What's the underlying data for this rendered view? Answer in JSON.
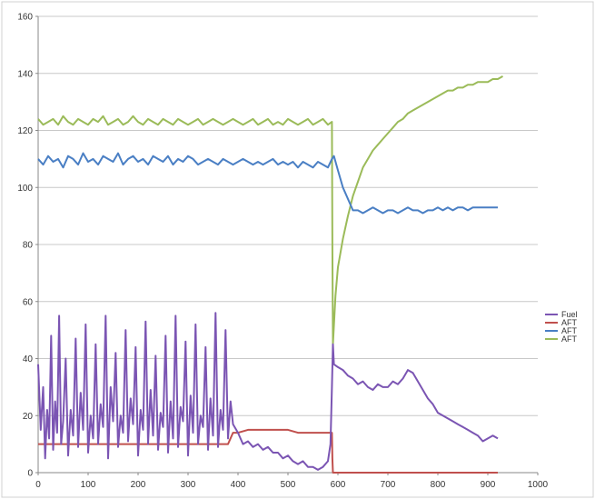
{
  "chart_data": {
    "type": "line",
    "xlim": [
      0,
      1000
    ],
    "ylim": [
      0,
      160
    ],
    "x_ticks": [
      0,
      100,
      200,
      300,
      400,
      500,
      600,
      700,
      800,
      900,
      1000
    ],
    "y_ticks": [
      0,
      20,
      40,
      60,
      80,
      100,
      120,
      140,
      160
    ],
    "grid": "horizontal",
    "legend_position": "right",
    "colors": {
      "fuel": "#7b55b3",
      "aft_red": "#c0504d",
      "aft_blue": "#4a7fc4",
      "aft_green": "#9bbb59",
      "grid": "#c8c8c8",
      "axis": "#888888"
    },
    "series": [
      {
        "name": "Fuel",
        "color": "#7b55b3",
        "x": [
          0,
          5,
          10,
          14,
          18,
          22,
          26,
          30,
          34,
          38,
          42,
          46,
          50,
          55,
          60,
          65,
          70,
          75,
          80,
          85,
          90,
          95,
          100,
          105,
          110,
          115,
          120,
          125,
          130,
          135,
          140,
          145,
          150,
          155,
          160,
          165,
          170,
          175,
          180,
          185,
          190,
          195,
          200,
          205,
          210,
          215,
          220,
          225,
          230,
          235,
          240,
          245,
          250,
          255,
          260,
          265,
          270,
          275,
          280,
          285,
          290,
          295,
          300,
          305,
          310,
          315,
          320,
          325,
          330,
          335,
          340,
          345,
          350,
          355,
          360,
          365,
          370,
          375,
          380,
          385,
          390,
          400,
          410,
          420,
          430,
          440,
          450,
          460,
          470,
          480,
          490,
          500,
          510,
          520,
          530,
          540,
          550,
          560,
          570,
          580,
          585,
          588,
          590,
          592,
          600,
          610,
          620,
          630,
          640,
          650,
          660,
          670,
          680,
          690,
          700,
          710,
          720,
          730,
          740,
          750,
          760,
          770,
          780,
          790,
          800,
          810,
          820,
          830,
          840,
          850,
          860,
          870,
          880,
          890,
          900,
          910,
          920
        ],
        "y": [
          38,
          15,
          30,
          5,
          22,
          12,
          48,
          8,
          25,
          14,
          55,
          10,
          18,
          40,
          6,
          22,
          13,
          47,
          9,
          28,
          15,
          52,
          7,
          20,
          12,
          45,
          10,
          24,
          16,
          55,
          5,
          30,
          18,
          42,
          9,
          20,
          14,
          50,
          11,
          26,
          17,
          44,
          6,
          22,
          15,
          53,
          10,
          29,
          13,
          41,
          8,
          21,
          16,
          48,
          7,
          25,
          12,
          55,
          9,
          23,
          18,
          46,
          6,
          27,
          14,
          52,
          10,
          20,
          16,
          44,
          8,
          26,
          13,
          56,
          9,
          22,
          15,
          50,
          12,
          25,
          17,
          14,
          10,
          11,
          9,
          10,
          8,
          9,
          7,
          7,
          5,
          6,
          4,
          3,
          4,
          2,
          2,
          1,
          2,
          4,
          10,
          30,
          45,
          38,
          37,
          36,
          34,
          33,
          31,
          32,
          30,
          29,
          31,
          30,
          30,
          32,
          31,
          33,
          36,
          35,
          32,
          29,
          26,
          24,
          21,
          20,
          19,
          18,
          17,
          16,
          15,
          14,
          13,
          11,
          12,
          13,
          12
        ]
      },
      {
        "name": "AFT",
        "color": "#c0504d",
        "x": [
          0,
          50,
          100,
          150,
          200,
          250,
          300,
          350,
          380,
          390,
          400,
          420,
          440,
          460,
          480,
          500,
          520,
          540,
          560,
          580,
          586,
          588,
          589,
          590,
          600,
          650,
          700,
          750,
          800,
          850,
          900,
          920
        ],
        "y": [
          10,
          10,
          10,
          10,
          10,
          10,
          10,
          10,
          10,
          14,
          14,
          15,
          15,
          15,
          15,
          15,
          14,
          14,
          14,
          14,
          14,
          14,
          5,
          0,
          0,
          0,
          0,
          0,
          0,
          0,
          0,
          0
        ]
      },
      {
        "name": "AFT",
        "color": "#4a7fc4",
        "x": [
          0,
          10,
          20,
          30,
          40,
          50,
          60,
          70,
          80,
          90,
          100,
          110,
          120,
          130,
          140,
          150,
          160,
          170,
          180,
          190,
          200,
          210,
          220,
          230,
          240,
          250,
          260,
          270,
          280,
          290,
          300,
          310,
          320,
          330,
          340,
          350,
          360,
          370,
          380,
          390,
          400,
          410,
          420,
          430,
          440,
          450,
          460,
          470,
          480,
          490,
          500,
          510,
          520,
          530,
          540,
          550,
          560,
          570,
          580,
          588,
          592,
          600,
          610,
          620,
          630,
          640,
          650,
          660,
          670,
          680,
          690,
          700,
          710,
          720,
          730,
          740,
          750,
          760,
          770,
          780,
          790,
          800,
          810,
          820,
          830,
          840,
          850,
          860,
          870,
          880,
          890,
          900,
          910,
          920
        ],
        "y": [
          110,
          108,
          111,
          109,
          110,
          107,
          111,
          110,
          108,
          112,
          109,
          110,
          108,
          111,
          110,
          109,
          112,
          108,
          110,
          111,
          109,
          110,
          108,
          111,
          110,
          109,
          111,
          108,
          110,
          109,
          111,
          110,
          108,
          109,
          110,
          109,
          108,
          110,
          109,
          108,
          109,
          110,
          109,
          108,
          109,
          108,
          109,
          110,
          108,
          109,
          108,
          109,
          107,
          109,
          108,
          107,
          109,
          108,
          107,
          110,
          111,
          106,
          100,
          96,
          92,
          92,
          91,
          92,
          93,
          92,
          91,
          92,
          92,
          91,
          92,
          93,
          92,
          92,
          91,
          92,
          92,
          93,
          92,
          93,
          92,
          93,
          93,
          92,
          93,
          93,
          93,
          93,
          93,
          93
        ]
      },
      {
        "name": "AFT",
        "color": "#9bbb59",
        "x": [
          0,
          10,
          20,
          30,
          40,
          50,
          60,
          70,
          80,
          90,
          100,
          110,
          120,
          130,
          140,
          150,
          160,
          170,
          180,
          190,
          200,
          210,
          220,
          230,
          240,
          250,
          260,
          270,
          280,
          290,
          300,
          310,
          320,
          330,
          340,
          350,
          360,
          370,
          380,
          390,
          400,
          410,
          420,
          430,
          440,
          450,
          460,
          470,
          480,
          490,
          500,
          510,
          520,
          530,
          540,
          550,
          560,
          570,
          580,
          588,
          589,
          590,
          595,
          600,
          610,
          620,
          630,
          640,
          650,
          660,
          670,
          680,
          690,
          700,
          710,
          720,
          730,
          740,
          750,
          760,
          770,
          780,
          790,
          800,
          810,
          820,
          830,
          840,
          850,
          860,
          870,
          880,
          890,
          900,
          910,
          920,
          930
        ],
        "y": [
          124,
          122,
          123,
          124,
          122,
          125,
          123,
          122,
          124,
          123,
          122,
          124,
          123,
          125,
          122,
          123,
          124,
          122,
          123,
          125,
          123,
          122,
          124,
          123,
          122,
          124,
          123,
          122,
          124,
          123,
          122,
          123,
          124,
          122,
          123,
          124,
          123,
          122,
          123,
          124,
          123,
          122,
          123,
          124,
          122,
          123,
          124,
          122,
          123,
          122,
          124,
          123,
          122,
          123,
          124,
          122,
          123,
          124,
          122,
          123,
          80,
          45,
          62,
          72,
          82,
          90,
          97,
          102,
          107,
          110,
          113,
          115,
          117,
          119,
          121,
          123,
          124,
          126,
          127,
          128,
          129,
          130,
          131,
          132,
          133,
          134,
          134,
          135,
          135,
          136,
          136,
          137,
          137,
          137,
          138,
          138,
          139
        ]
      }
    ]
  }
}
